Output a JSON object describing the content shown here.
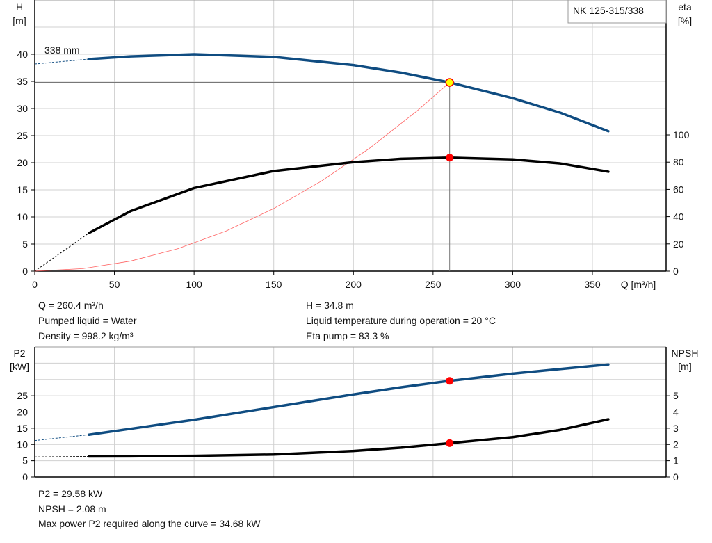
{
  "chart_data": [
    {
      "type": "line",
      "title": "NK 125-315/338",
      "xlabel": "Q [m³/h]",
      "ylabel": "H\n[m]",
      "ylabel_right": "eta\n[%]",
      "xlim": [
        0,
        395
      ],
      "ylim": [
        0,
        50
      ],
      "ylim_right": [
        0,
        199
      ],
      "x_ticks": [
        0,
        50,
        100,
        150,
        200,
        250,
        300,
        350
      ],
      "y_ticks": [
        0,
        5,
        10,
        15,
        20,
        25,
        30,
        35,
        40
      ],
      "y_ticks_right": [
        0,
        20,
        40,
        60,
        80,
        100
      ],
      "grid": true,
      "curve_label": "338 mm",
      "colors": {
        "head": "#0f4c81",
        "eta": "#000000",
        "system": "#ff6060",
        "marker": "#ff0000",
        "marker_fill_op": "#ffff00"
      },
      "series": [
        {
          "key": "head",
          "axis": "left",
          "x": [
            34,
            60,
            100,
            150,
            200,
            230,
            260.4,
            300,
            330,
            360
          ],
          "y": [
            39.1,
            39.6,
            40.0,
            39.5,
            38.0,
            36.6,
            34.8,
            31.9,
            29.2,
            25.8
          ],
          "extrapolated": {
            "x": [
              0,
              34
            ],
            "y": [
              38.2,
              39.1
            ]
          }
        },
        {
          "key": "eta",
          "axis": "right",
          "x": [
            34,
            60,
            100,
            150,
            200,
            230,
            260.4,
            300,
            330,
            360
          ],
          "y": [
            28,
            44,
            61,
            73.5,
            80,
            82.5,
            83.3,
            82,
            79,
            73
          ],
          "extrapolated": {
            "x": [
              0,
              34
            ],
            "y": [
              0,
              28
            ]
          }
        },
        {
          "key": "system",
          "axis": "left",
          "x": [
            0,
            30,
            60,
            90,
            120,
            150,
            180,
            210,
            240,
            260.4
          ],
          "y": [
            0,
            0.46,
            1.85,
            4.16,
            7.39,
            11.55,
            16.63,
            22.63,
            29.56,
            34.8
          ]
        }
      ],
      "operating_point": {
        "Q": 260.4,
        "H": 34.8,
        "eta": 83.3
      }
    },
    {
      "type": "line",
      "ylabel": "P2\n[kW]",
      "ylabel_right": "NPSH\n[m]",
      "xlim": [
        0,
        395
      ],
      "ylim": [
        0,
        40
      ],
      "ylim_right": [
        0,
        8
      ],
      "y_ticks": [
        0,
        5,
        10,
        15,
        20,
        25
      ],
      "y_ticks_right": [
        0,
        1,
        2,
        3,
        4,
        5
      ],
      "grid": true,
      "series": [
        {
          "key": "p2",
          "axis": "left",
          "x": [
            34,
            60,
            100,
            150,
            200,
            230,
            260.4,
            300,
            330,
            360
          ],
          "y": [
            13.0,
            14.8,
            17.6,
            21.5,
            25.4,
            27.6,
            29.58,
            31.8,
            33.2,
            34.6
          ],
          "extrapolated": {
            "x": [
              0,
              34
            ],
            "y": [
              11.2,
              13.0
            ]
          }
        },
        {
          "key": "npsh",
          "axis": "right",
          "x": [
            34,
            60,
            100,
            150,
            200,
            230,
            260.4,
            300,
            330,
            360
          ],
          "y": [
            1.26,
            1.27,
            1.3,
            1.38,
            1.6,
            1.8,
            2.08,
            2.45,
            2.9,
            3.55
          ],
          "extrapolated": {
            "x": [
              0,
              34
            ],
            "y": [
              1.23,
              1.26
            ]
          }
        }
      ],
      "operating_point": {
        "Q": 260.4,
        "P2": 29.58,
        "NPSH": 2.08
      }
    }
  ],
  "info_top": {
    "q": "Q = 260.4 m³/h",
    "liquid": "Pumped liquid = Water",
    "density": "Density = 998.2 kg/m³",
    "h": "H = 34.8 m",
    "temp": "Liquid temperature during operation = 20 °C",
    "eta": "Eta pump = 83.3 %"
  },
  "info_bottom": {
    "p2": "P2 = 29.58 kW",
    "npsh": "NPSH = 2.08 m",
    "max_power": "Max power P2 required along the curve = 34.68 kW"
  }
}
